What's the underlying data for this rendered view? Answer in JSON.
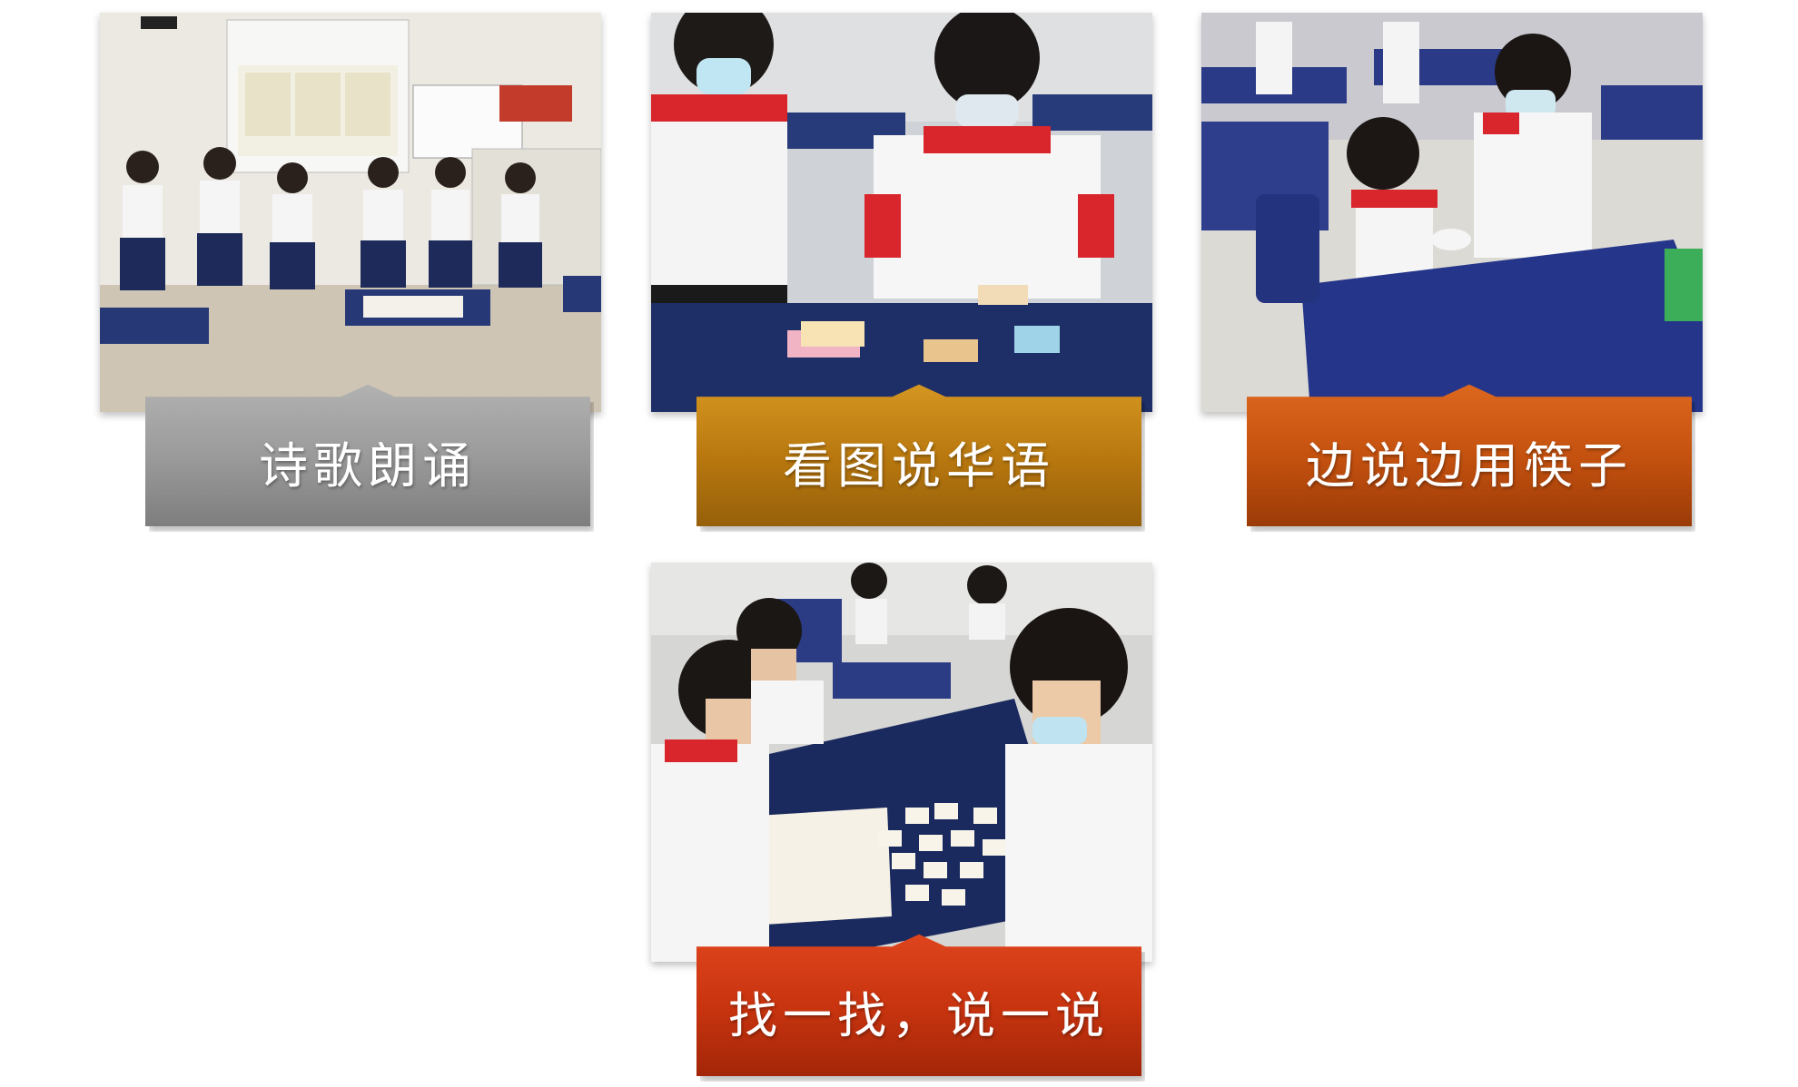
{
  "cards": [
    {
      "caption": "诗歌朗诵",
      "caption_color": "#9a9a9a",
      "photo": "students-reciting-poem-photo"
    },
    {
      "caption": "看图说华语",
      "caption_color": "#b9780f",
      "photo": "students-picture-cards-photo"
    },
    {
      "caption": "边说边用筷子",
      "caption_color": "#c4510f",
      "photo": "students-chopsticks-photo"
    },
    {
      "caption": "找一找，说一说",
      "caption_color": "#c8340f",
      "photo": "students-word-cards-photo"
    }
  ]
}
